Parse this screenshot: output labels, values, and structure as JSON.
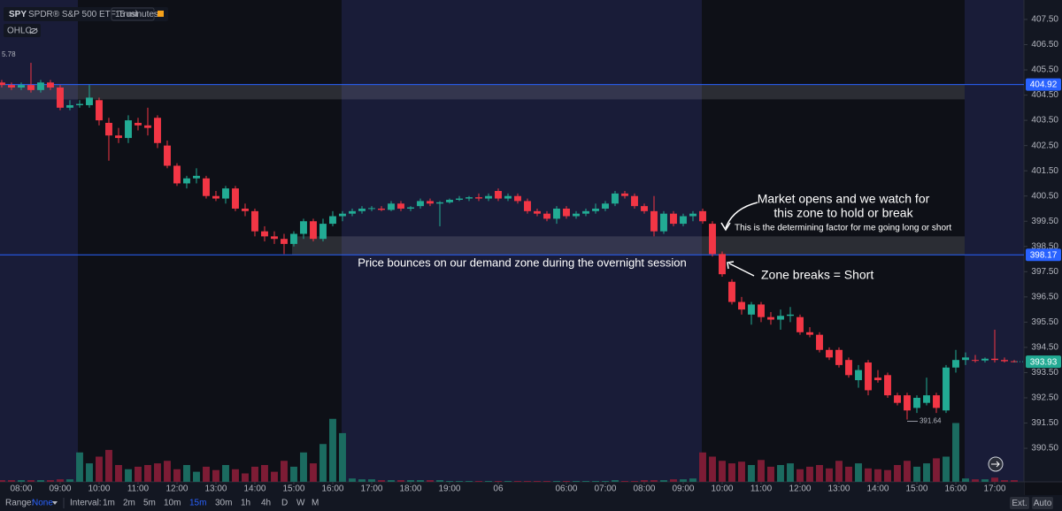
{
  "header": {
    "symbol": "SPY",
    "name": "SPDR® S&P 500 ETF Trust",
    "interval": "15 minutes",
    "indicator": "OHLC"
  },
  "chart_data": {
    "type": "candlestick",
    "up_color": "#22ab94",
    "down_color": "#f23645",
    "volume_up_color": "#1b6b60",
    "volume_down_color": "#7d1c35",
    "grid": false,
    "xlim": [
      -0.18,
      105
    ],
    "ylim": [
      389.17,
      408.27
    ],
    "volume_lim": [
      0,
      100
    ],
    "xticks": [
      {
        "value": 2,
        "label": "08:00"
      },
      {
        "value": 6,
        "label": "09:00"
      },
      {
        "value": 10,
        "label": "10:00"
      },
      {
        "value": 14,
        "label": "11:00"
      },
      {
        "value": 18,
        "label": "12:00"
      },
      {
        "value": 22,
        "label": "13:00"
      },
      {
        "value": 26,
        "label": "14:00"
      },
      {
        "value": 30,
        "label": "15:00"
      },
      {
        "value": 34,
        "label": "16:00"
      },
      {
        "value": 38,
        "label": "17:00"
      },
      {
        "value": 42,
        "label": "18:00"
      },
      {
        "value": 46,
        "label": "19:00"
      },
      {
        "value": 51,
        "label": "06"
      },
      {
        "value": 58,
        "label": "06:00"
      },
      {
        "value": 62,
        "label": "07:00"
      },
      {
        "value": 66,
        "label": "08:00"
      },
      {
        "value": 70,
        "label": "09:00"
      },
      {
        "value": 74,
        "label": "10:00"
      },
      {
        "value": 78,
        "label": "11:00"
      },
      {
        "value": 82,
        "label": "12:00"
      },
      {
        "value": 86,
        "label": "13:00"
      },
      {
        "value": 90,
        "label": "14:00"
      },
      {
        "value": 94,
        "label": "15:00"
      },
      {
        "value": 98,
        "label": "16:00"
      },
      {
        "value": 102,
        "label": "17:00"
      }
    ],
    "yticks": [
      {
        "value": 407.5,
        "label": "407.50"
      },
      {
        "value": 406.5,
        "label": "406.50"
      },
      {
        "value": 405.5,
        "label": "405.50"
      },
      {
        "value": 404.5,
        "label": "404.50"
      },
      {
        "value": 403.5,
        "label": "403.50"
      },
      {
        "value": 402.5,
        "label": "402.50"
      },
      {
        "value": 401.5,
        "label": "401.50"
      },
      {
        "value": 400.5,
        "label": "400.50"
      },
      {
        "value": 399.5,
        "label": "399.50"
      },
      {
        "value": 398.5,
        "label": "398.50"
      },
      {
        "value": 397.5,
        "label": "397.50"
      },
      {
        "value": 396.5,
        "label": "396.50"
      },
      {
        "value": 395.5,
        "label": "395.50"
      },
      {
        "value": 394.5,
        "label": "394.50"
      },
      {
        "value": 393.5,
        "label": "393.50"
      },
      {
        "value": 392.5,
        "label": "392.50"
      },
      {
        "value": 391.5,
        "label": "391.50"
      },
      {
        "value": 390.5,
        "label": "390.50"
      }
    ],
    "zones": [
      {
        "top": 404.92,
        "bottom": 404.33
      },
      {
        "top": 398.9,
        "bottom": 398.17
      }
    ],
    "price_lines": [
      {
        "value": 404.92,
        "label": "404.92",
        "color": "#2962ff"
      },
      {
        "value": 398.17,
        "label": "398.17",
        "color": "#2962ff"
      }
    ],
    "last_price": {
      "value": 393.93,
      "label": "393.93",
      "color": "#22ab94"
    },
    "low_marker": {
      "value": 391.64,
      "label": "391.64"
    },
    "high_label": "5.78",
    "annotations": [
      "Market opens and we watch for",
      "this zone to hold or break",
      "This is the determining factor for me going long or short",
      "Price bounces on our demand zone during the overnight session",
      "Zone breaks = Short"
    ],
    "candles": [
      [
        405.0,
        405.1,
        404.8,
        404.9
      ],
      [
        404.9,
        405.0,
        404.7,
        404.8
      ],
      [
        404.8,
        405.0,
        404.7,
        404.9
      ],
      [
        404.9,
        405.78,
        404.6,
        404.7
      ],
      [
        404.7,
        405.1,
        404.6,
        405.0
      ],
      [
        405.0,
        405.1,
        404.7,
        404.8
      ],
      [
        404.8,
        404.9,
        403.9,
        404.0
      ],
      [
        404.0,
        404.3,
        403.9,
        404.1
      ],
      [
        404.1,
        404.3,
        404.0,
        404.15
      ],
      [
        404.1,
        404.9,
        404.0,
        404.4
      ],
      [
        404.3,
        404.4,
        403.3,
        403.5
      ],
      [
        403.4,
        403.6,
        401.9,
        402.9
      ],
      [
        402.9,
        403.2,
        402.6,
        402.8
      ],
      [
        402.8,
        403.7,
        402.6,
        403.5
      ],
      [
        403.4,
        403.6,
        403.1,
        403.3
      ],
      [
        403.3,
        404.0,
        402.9,
        403.2
      ],
      [
        403.6,
        403.7,
        402.4,
        402.6
      ],
      [
        402.5,
        402.7,
        401.6,
        401.7
      ],
      [
        401.7,
        401.8,
        400.9,
        401.0
      ],
      [
        401.0,
        401.3,
        400.8,
        401.2
      ],
      [
        401.2,
        401.6,
        401.0,
        401.3
      ],
      [
        401.2,
        401.3,
        400.4,
        400.5
      ],
      [
        400.5,
        400.7,
        400.3,
        400.4
      ],
      [
        400.4,
        400.9,
        400.2,
        400.8
      ],
      [
        400.8,
        400.9,
        399.9,
        400.0
      ],
      [
        400.0,
        400.2,
        399.7,
        399.9
      ],
      [
        399.9,
        400.0,
        398.9,
        399.1
      ],
      [
        399.1,
        399.3,
        398.7,
        398.9
      ],
      [
        398.9,
        399.1,
        398.6,
        398.8
      ],
      [
        398.8,
        399.0,
        398.2,
        398.6
      ],
      [
        398.6,
        399.1,
        398.5,
        399.0
      ],
      [
        399.0,
        399.6,
        398.8,
        399.5
      ],
      [
        399.5,
        399.6,
        398.7,
        398.8
      ],
      [
        398.8,
        399.6,
        398.7,
        399.4
      ],
      [
        399.4,
        399.9,
        399.3,
        399.7
      ],
      [
        399.7,
        399.9,
        399.5,
        399.8
      ],
      [
        399.8,
        400.0,
        399.7,
        399.9
      ],
      [
        399.9,
        400.1,
        399.8,
        400.0
      ],
      [
        400.0,
        400.1,
        399.9,
        400.02
      ],
      [
        400.0,
        400.1,
        399.9,
        399.95
      ],
      [
        399.95,
        400.3,
        399.9,
        400.2
      ],
      [
        400.2,
        400.3,
        399.9,
        400.0
      ],
      [
        400.0,
        400.1,
        399.9,
        400.05
      ],
      [
        400.1,
        400.4,
        400.0,
        400.3
      ],
      [
        400.3,
        400.4,
        400.1,
        400.2
      ],
      [
        400.2,
        400.3,
        399.3,
        400.25
      ],
      [
        400.25,
        400.4,
        400.2,
        400.35
      ],
      [
        400.35,
        400.5,
        400.3,
        400.4
      ],
      [
        400.4,
        400.5,
        400.3,
        400.45
      ],
      [
        400.45,
        400.6,
        400.3,
        400.4
      ],
      [
        400.4,
        400.6,
        400.3,
        400.5
      ],
      [
        400.7,
        400.8,
        400.3,
        400.4
      ],
      [
        400.4,
        400.6,
        400.3,
        400.5
      ],
      [
        400.5,
        400.6,
        400.2,
        400.3
      ],
      [
        400.3,
        400.4,
        399.8,
        399.9
      ],
      [
        399.9,
        400.0,
        399.7,
        399.8
      ],
      [
        399.8,
        399.9,
        399.5,
        399.6
      ],
      [
        399.6,
        400.1,
        399.4,
        400.0
      ],
      [
        400.0,
        400.1,
        399.6,
        399.7
      ],
      [
        399.7,
        399.9,
        399.6,
        399.8
      ],
      [
        399.8,
        400.0,
        399.7,
        399.9
      ],
      [
        399.9,
        400.2,
        399.8,
        400.0
      ],
      [
        400.0,
        400.3,
        399.9,
        400.2
      ],
      [
        400.2,
        400.7,
        400.1,
        400.6
      ],
      [
        400.6,
        400.7,
        400.4,
        400.5
      ],
      [
        400.5,
        400.6,
        400.0,
        400.1
      ],
      [
        400.1,
        400.2,
        399.8,
        399.9
      ],
      [
        399.9,
        400.5,
        398.9,
        399.1
      ],
      [
        399.1,
        399.9,
        399.0,
        399.8
      ],
      [
        399.8,
        399.9,
        399.3,
        399.4
      ],
      [
        399.4,
        399.8,
        399.3,
        399.7
      ],
      [
        399.7,
        399.9,
        399.5,
        399.8
      ],
      [
        399.9,
        400.0,
        399.4,
        399.5
      ],
      [
        399.4,
        399.5,
        398.1,
        398.2
      ],
      [
        398.2,
        398.3,
        397.3,
        397.4
      ],
      [
        397.1,
        397.2,
        396.2,
        396.3
      ],
      [
        396.3,
        396.5,
        395.8,
        396.0
      ],
      [
        395.8,
        396.3,
        395.4,
        396.2
      ],
      [
        396.2,
        396.3,
        395.5,
        395.7
      ],
      [
        395.7,
        395.9,
        395.4,
        395.6
      ],
      [
        395.6,
        396.0,
        395.2,
        395.75
      ],
      [
        395.75,
        396.1,
        395.5,
        395.8
      ],
      [
        395.7,
        395.8,
        395.0,
        395.1
      ],
      [
        395.1,
        395.3,
        394.9,
        395.0
      ],
      [
        395.0,
        395.1,
        394.3,
        394.4
      ],
      [
        394.4,
        394.5,
        394.0,
        394.1
      ],
      [
        394.4,
        394.5,
        393.7,
        393.8
      ],
      [
        394.0,
        394.1,
        393.3,
        393.4
      ],
      [
        393.2,
        393.8,
        392.9,
        393.6
      ],
      [
        393.9,
        394.0,
        392.6,
        392.8
      ],
      [
        393.3,
        393.6,
        393.1,
        393.2
      ],
      [
        393.4,
        393.5,
        392.5,
        392.6
      ],
      [
        392.6,
        392.7,
        392.2,
        392.3
      ],
      [
        392.6,
        392.7,
        391.64,
        392.0
      ],
      [
        392.1,
        392.6,
        391.9,
        392.5
      ],
      [
        392.3,
        393.3,
        392.2,
        392.6
      ],
      [
        392.6,
        392.7,
        391.9,
        392.1
      ],
      [
        392.0,
        393.8,
        391.9,
        393.7
      ],
      [
        393.7,
        394.4,
        393.5,
        394.0
      ],
      [
        394.0,
        394.3,
        393.8,
        394.1
      ],
      [
        394.0,
        394.2,
        393.9,
        393.98
      ],
      [
        393.98,
        394.1,
        393.9,
        394.05
      ],
      [
        394.05,
        395.2,
        393.9,
        394.0
      ],
      [
        394.0,
        394.1,
        393.9,
        393.95
      ],
      [
        393.95,
        394.0,
        393.9,
        393.93
      ]
    ],
    "volumes": [
      2,
      2,
      2,
      2,
      2,
      2,
      3,
      3,
      35,
      22,
      30,
      38,
      20,
      15,
      18,
      20,
      22,
      25,
      15,
      20,
      12,
      18,
      14,
      20,
      15,
      10,
      18,
      20,
      12,
      25,
      18,
      35,
      22,
      45,
      75,
      58,
      4,
      3,
      3,
      2,
      2,
      2,
      2,
      2,
      2,
      2,
      1,
      1,
      1,
      1,
      1,
      1,
      1,
      1,
      1,
      1,
      1,
      1,
      1,
      1,
      1,
      1,
      1,
      2,
      1,
      1,
      2,
      2,
      2,
      3,
      3,
      4,
      35,
      30,
      25,
      22,
      24,
      20,
      26,
      18,
      20,
      22,
      15,
      18,
      20,
      16,
      25,
      18,
      22,
      16,
      15,
      14,
      20,
      25,
      18,
      22,
      28,
      30,
      70,
      4,
      3,
      3,
      5,
      2,
      2
    ]
  },
  "toolbar": {
    "range_label": "Range:",
    "range_value": "None",
    "interval_label": "Interval:",
    "intervals": [
      "1m",
      "2m",
      "5m",
      "10m",
      "15m",
      "30m",
      "1h",
      "4h",
      "D",
      "W",
      "M"
    ],
    "active_interval": "15m",
    "buttons": [
      "Ext.",
      "Auto"
    ]
  }
}
